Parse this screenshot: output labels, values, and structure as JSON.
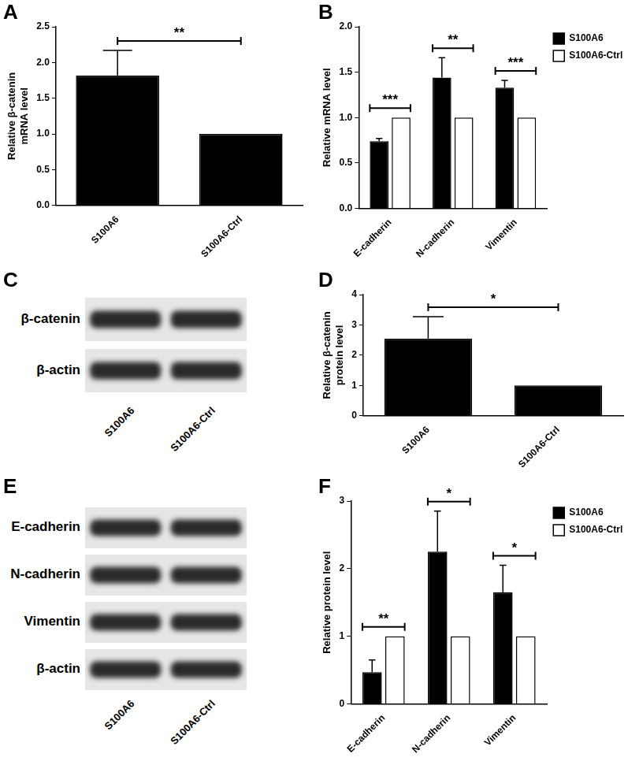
{
  "chart_data": [
    {
      "panel": "A",
      "type": "bar",
      "y_label": "Relative β-catenin mRNA level",
      "categories": [
        "S100A6",
        "S100A6-Ctrl"
      ],
      "values": [
        1.82,
        1.0
      ],
      "errors": [
        0.35,
        0
      ],
      "colors": [
        "#000000",
        "#000000"
      ],
      "annotations": [
        "**"
      ],
      "ylim": [
        0,
        2.5
      ],
      "yticks": [
        {
          "value": 0,
          "label": "0.0"
        },
        {
          "value": 0.5,
          "label": "0.5"
        },
        {
          "value": 1,
          "label": "1.0"
        },
        {
          "value": 1.5,
          "label": "1.5"
        },
        {
          "value": 2,
          "label": "2.0"
        },
        {
          "value": 2.5,
          "label": "2.5"
        }
      ],
      "grid": false
    },
    {
      "panel": "B",
      "type": "bar",
      "y_label": "Relative mRNA level",
      "categories": [
        "E-cadherin",
        "N-cadherin",
        "Vimentin"
      ],
      "series": [
        {
          "name": "S100A6",
          "color": "#000000",
          "values": [
            0.74,
            1.44,
            1.33
          ],
          "errors": [
            0.03,
            0.22,
            0.08
          ]
        },
        {
          "name": "S100A6-Ctrl",
          "color": "#ffffff",
          "values": [
            1.0,
            1.0,
            1.0
          ],
          "errors": [
            0,
            0,
            0
          ]
        }
      ],
      "annotations": [
        "***",
        "**",
        "***"
      ],
      "ylim": [
        0,
        2
      ],
      "yticks": [
        {
          "value": 0,
          "label": "0.0"
        },
        {
          "value": 0.5,
          "label": "0.5"
        },
        {
          "value": 1,
          "label": "1.0"
        },
        {
          "value": 1.5,
          "label": "1.5"
        },
        {
          "value": 2,
          "label": "2.0"
        }
      ],
      "legend": "top-right",
      "grid": false
    },
    {
      "panel": "D",
      "type": "bar",
      "y_label": "Relative β-catenin protein level",
      "categories": [
        "S100A6",
        "S100A6-Ctrl"
      ],
      "values": [
        2.55,
        1.0
      ],
      "errors": [
        0.72,
        0
      ],
      "colors": [
        "#000000",
        "#000000"
      ],
      "annotations": [
        "*"
      ],
      "ylim": [
        0,
        4
      ],
      "yticks": [
        0,
        1,
        2,
        3,
        4
      ],
      "grid": false
    },
    {
      "panel": "F",
      "type": "bar",
      "y_label": "Relative protein level",
      "categories": [
        "E-cadherin",
        "N-cadherin",
        "Vimentin"
      ],
      "series": [
        {
          "name": "S100A6",
          "color": "#000000",
          "values": [
            0.47,
            2.25,
            1.65
          ],
          "errors": [
            0.18,
            0.6,
            0.4
          ]
        },
        {
          "name": "S100A6-Ctrl",
          "color": "#ffffff",
          "values": [
            1.0,
            1.0,
            1.0
          ],
          "errors": [
            0,
            0,
            0
          ]
        }
      ],
      "annotations": [
        "**",
        "*",
        "*"
      ],
      "ylim": [
        0,
        3
      ],
      "yticks": [
        0,
        1,
        2,
        3
      ],
      "legend": "top-right",
      "grid": false
    }
  ],
  "blots": [
    {
      "panel": "C",
      "rows": [
        "β-catenin",
        "β-actin"
      ],
      "lanes": [
        "S100A6",
        "S100A6-Ctrl"
      ]
    },
    {
      "panel": "E",
      "rows": [
        "E-cadherin",
        "N-cadherin",
        "Vimentin",
        "β-actin"
      ],
      "lanes": [
        "S100A6",
        "S100A6-Ctrl"
      ]
    }
  ]
}
